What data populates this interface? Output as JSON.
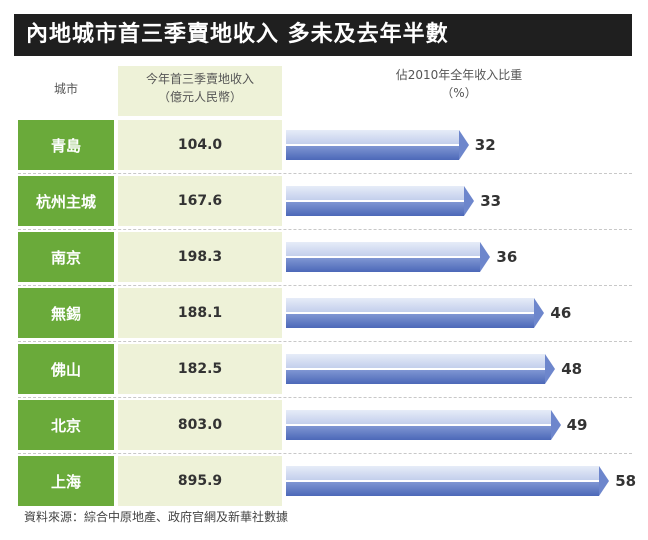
{
  "title": "內地城市首三季賣地收入 多未及去年半數",
  "headers": {
    "city": "城市",
    "revenue_line1": "今年首三季賣地收入",
    "revenue_line2": "（億元人民幣）",
    "share_line1": "佔2010年全年收入比重",
    "share_line2": "（%）"
  },
  "chart_data": {
    "type": "bar",
    "categories": [
      "青島",
      "杭州主城",
      "南京",
      "無錫",
      "佛山",
      "北京",
      "上海"
    ],
    "revenue": [
      "104.0",
      "167.6",
      "198.3",
      "188.1",
      "182.5",
      "803.0",
      "895.9"
    ],
    "values": [
      32,
      33,
      36,
      46,
      48,
      49,
      58
    ],
    "xlim": [
      0,
      60
    ],
    "colors": {
      "city": "#6aaa3a",
      "bar": "#4c68b8",
      "bar_light": "#c3cfec"
    }
  },
  "source": "資料來源：綜合中原地產、政府官網及新華社數據"
}
